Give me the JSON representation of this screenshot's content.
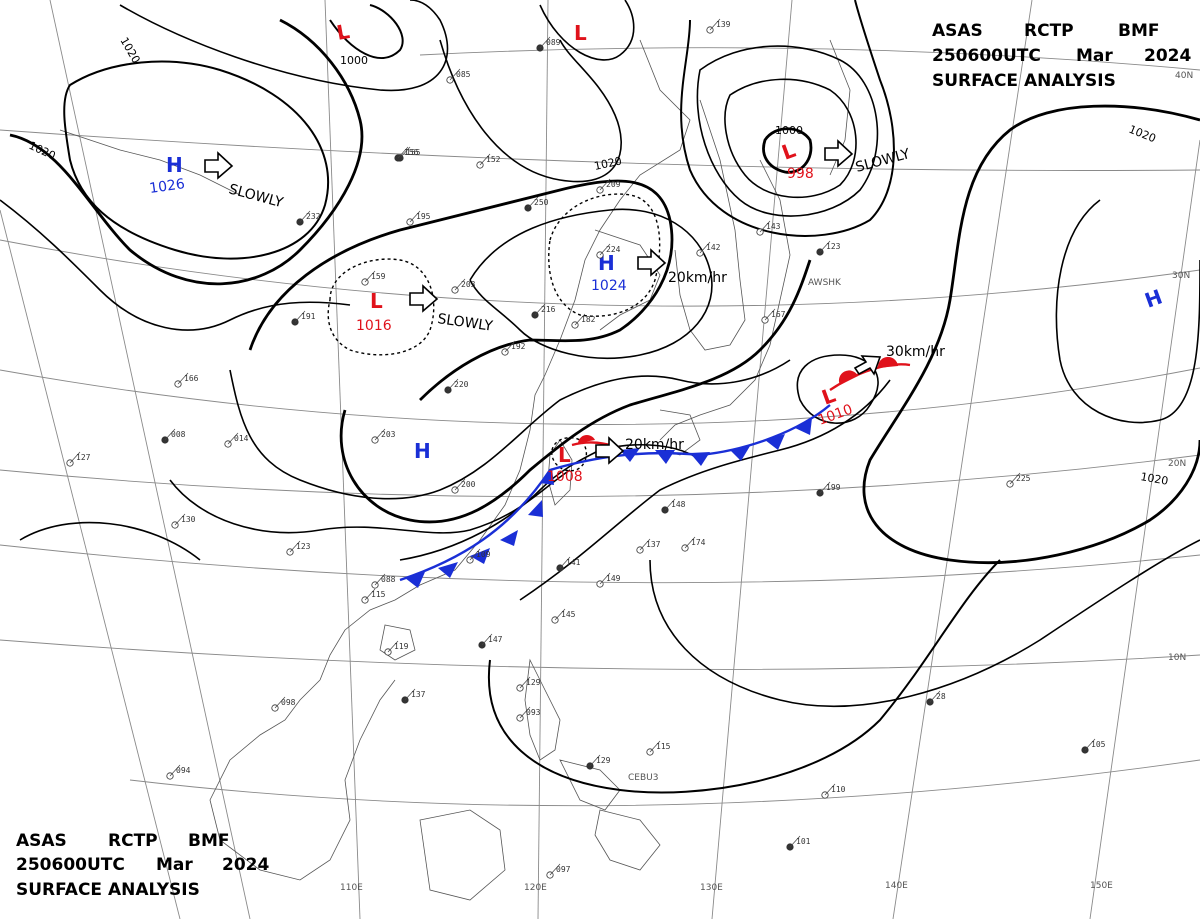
{
  "header": {
    "top_right": {
      "line1": [
        "ASAS",
        "RCTP",
        "BMF"
      ],
      "line2": [
        "250600UTC",
        "Mar",
        "2024"
      ],
      "line3": "SURFACE ANALYSIS"
    },
    "bottom_left": {
      "line1": [
        "ASAS",
        "RCTP",
        "BMF"
      ],
      "line2": [
        "250600UTC",
        "Mar",
        "2024"
      ],
      "line3": "SURFACE ANALYSIS"
    }
  },
  "graticule": {
    "latitudes": [
      "40N",
      "30N",
      "20N",
      "10N"
    ],
    "longitudes": [
      "110E",
      "120E",
      "130E",
      "140E",
      "150E"
    ]
  },
  "pressure_centers": [
    {
      "id": "high-north-west",
      "type": "H",
      "value": "1026",
      "color": "#1a2fd6"
    },
    {
      "id": "high-central",
      "type": "H",
      "value": "1024",
      "color": "#1a2fd6"
    },
    {
      "id": "high-inland",
      "type": "H",
      "value": "",
      "color": "#1a2fd6"
    },
    {
      "id": "high-east",
      "type": "H",
      "value": "",
      "color": "#1a2fd6"
    },
    {
      "id": "low-north",
      "type": "L",
      "value": "",
      "color": "#e0121b"
    },
    {
      "id": "low-north-center",
      "type": "L",
      "value": "",
      "color": "#e0121b"
    },
    {
      "id": "low-northeast",
      "type": "L",
      "value": "998",
      "color": "#e0121b"
    },
    {
      "id": "low-inland",
      "type": "L",
      "value": "1016",
      "color": "#e0121b"
    },
    {
      "id": "low-taiwan-strait",
      "type": "L",
      "value": "1008",
      "color": "#e0121b"
    },
    {
      "id": "low-east",
      "type": "L",
      "value": "1010",
      "color": "#e0121b"
    }
  ],
  "motions": [
    {
      "id": "high-north-west",
      "text": "SLOWLY"
    },
    {
      "id": "low-northeast",
      "text": "SLOWLY"
    },
    {
      "id": "low-inland",
      "text": "SLOWLY"
    },
    {
      "id": "high-central",
      "text": "20km/hr"
    },
    {
      "id": "low-taiwan-strait",
      "text": "20km/hr"
    },
    {
      "id": "low-east",
      "text": "30km/hr"
    }
  ],
  "isobar_labels": [
    "1020",
    "1020",
    "1020",
    "1020",
    "1000",
    "1000",
    "1020"
  ],
  "place_labels": [
    "AWSHK",
    "CEBU3"
  ],
  "station_values": [
    "089",
    "085",
    "139",
    "155",
    "152",
    "195",
    "232",
    "159",
    "203",
    "216",
    "182",
    "192",
    "220",
    "203",
    "200",
    "008",
    "014",
    "166",
    "191",
    "123",
    "109",
    "141",
    "149",
    "145",
    "147",
    "129",
    "093",
    "129",
    "115",
    "110",
    "101",
    "097",
    "094",
    "137",
    "119",
    "115",
    "156",
    "209",
    "224",
    "250",
    "142",
    "143",
    "123",
    "167",
    "225",
    "199",
    "174",
    "137",
    "148",
    "130",
    "127",
    "105",
    "098",
    "088",
    "28"
  ],
  "colors": {
    "high": "#1a2fd6",
    "low": "#e0121b",
    "cold_front": "#1a2fd6",
    "warm_front": "#e0121b",
    "isobar": "#000000",
    "coast": "#555555",
    "graticule": "#8a8a8a"
  }
}
